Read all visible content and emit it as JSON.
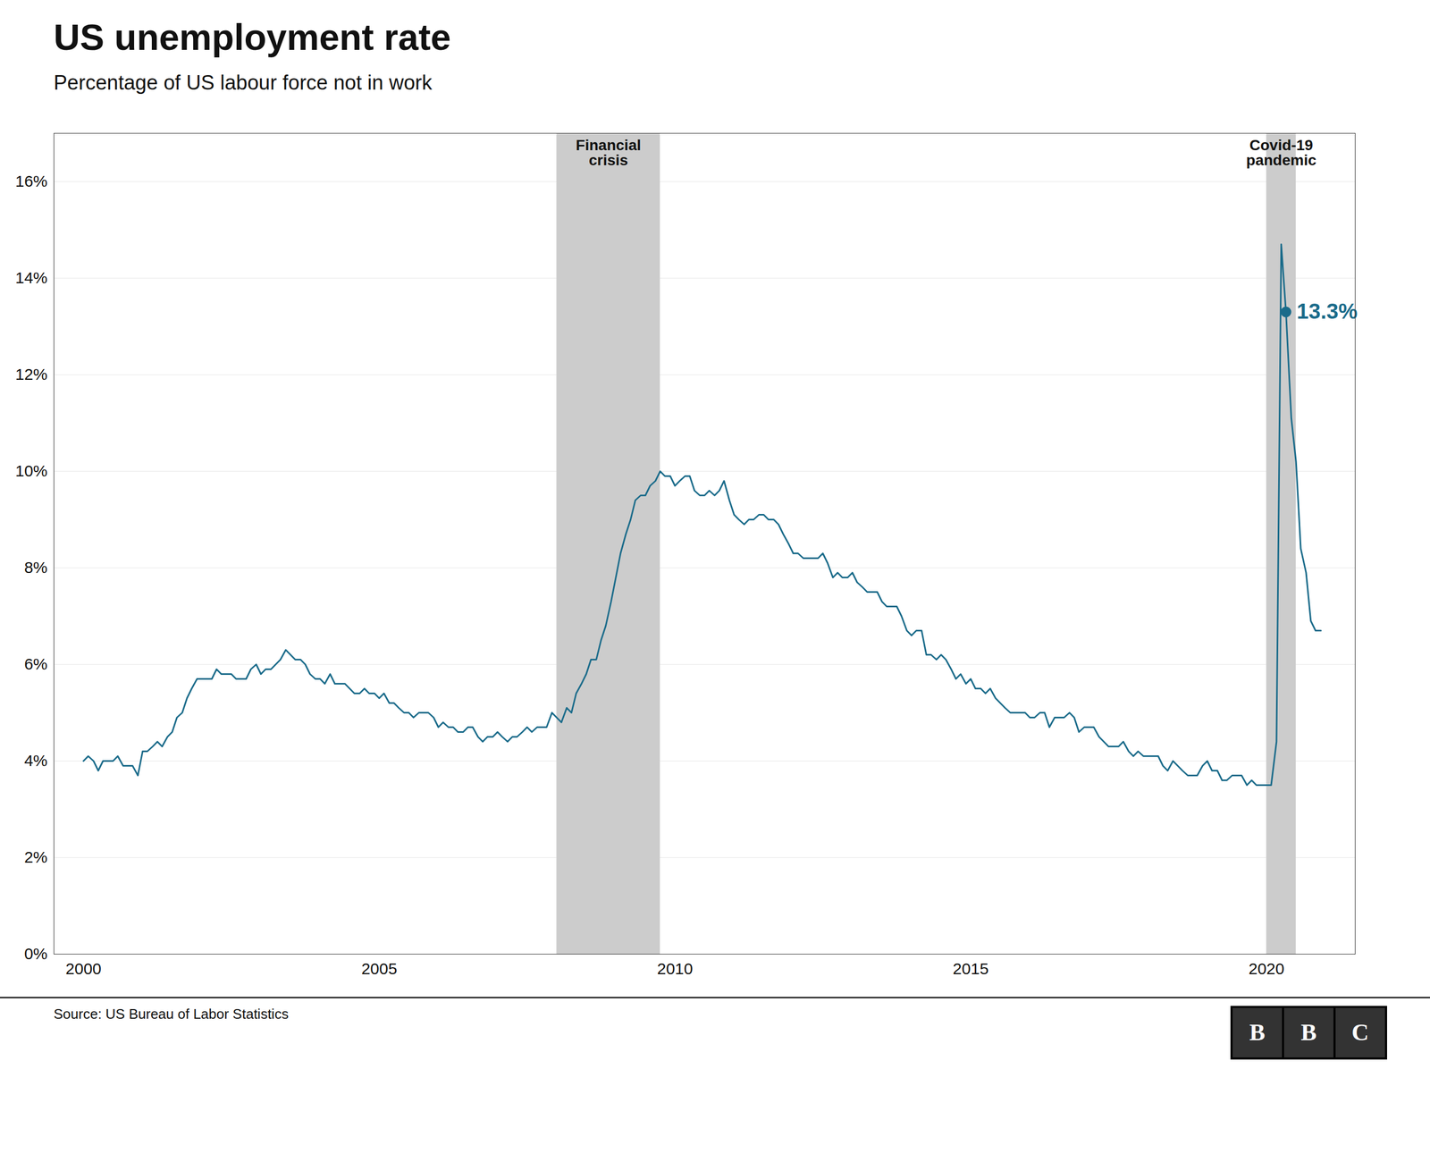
{
  "chart_data": {
    "type": "line",
    "title": "US unemployment rate",
    "subtitle": "Percentage of US labour force not in work",
    "source": "Source: US Bureau of Labor Statistics",
    "logo": "BBC",
    "color": "#1a6b8a",
    "x": [
      2000.0,
      2000.08,
      2000.17,
      2000.25,
      2000.33,
      2000.42,
      2000.5,
      2000.58,
      2000.67,
      2000.75,
      2000.83,
      2000.92,
      2001.0,
      2001.08,
      2001.17,
      2001.25,
      2001.33,
      2001.42,
      2001.5,
      2001.58,
      2001.67,
      2001.75,
      2001.83,
      2001.92,
      2002.0,
      2002.08,
      2002.17,
      2002.25,
      2002.33,
      2002.42,
      2002.5,
      2002.58,
      2002.67,
      2002.75,
      2002.83,
      2002.92,
      2003.0,
      2003.08,
      2003.17,
      2003.25,
      2003.33,
      2003.42,
      2003.5,
      2003.58,
      2003.67,
      2003.75,
      2003.83,
      2003.92,
      2004.0,
      2004.08,
      2004.17,
      2004.25,
      2004.33,
      2004.42,
      2004.5,
      2004.58,
      2004.67,
      2004.75,
      2004.83,
      2004.92,
      2005.0,
      2005.08,
      2005.17,
      2005.25,
      2005.33,
      2005.42,
      2005.5,
      2005.58,
      2005.67,
      2005.75,
      2005.83,
      2005.92,
      2006.0,
      2006.08,
      2006.17,
      2006.25,
      2006.33,
      2006.42,
      2006.5,
      2006.58,
      2006.67,
      2006.75,
      2006.83,
      2006.92,
      2007.0,
      2007.08,
      2007.17,
      2007.25,
      2007.33,
      2007.42,
      2007.5,
      2007.58,
      2007.67,
      2007.75,
      2007.83,
      2007.92,
      2008.0,
      2008.08,
      2008.17,
      2008.25,
      2008.33,
      2008.42,
      2008.5,
      2008.58,
      2008.67,
      2008.75,
      2008.83,
      2008.92,
      2009.0,
      2009.08,
      2009.17,
      2009.25,
      2009.33,
      2009.42,
      2009.5,
      2009.58,
      2009.67,
      2009.75,
      2009.83,
      2009.92,
      2010.0,
      2010.08,
      2010.17,
      2010.25,
      2010.33,
      2010.42,
      2010.5,
      2010.58,
      2010.67,
      2010.75,
      2010.83,
      2010.92,
      2011.0,
      2011.08,
      2011.17,
      2011.25,
      2011.33,
      2011.42,
      2011.5,
      2011.58,
      2011.67,
      2011.75,
      2011.83,
      2011.92,
      2012.0,
      2012.08,
      2012.17,
      2012.25,
      2012.33,
      2012.42,
      2012.5,
      2012.58,
      2012.67,
      2012.75,
      2012.83,
      2012.92,
      2013.0,
      2013.08,
      2013.17,
      2013.25,
      2013.33,
      2013.42,
      2013.5,
      2013.58,
      2013.67,
      2013.75,
      2013.83,
      2013.92,
      2014.0,
      2014.08,
      2014.17,
      2014.25,
      2014.33,
      2014.42,
      2014.5,
      2014.58,
      2014.67,
      2014.75,
      2014.83,
      2014.92,
      2015.0,
      2015.08,
      2015.17,
      2015.25,
      2015.33,
      2015.42,
      2015.5,
      2015.58,
      2015.67,
      2015.75,
      2015.83,
      2015.92,
      2016.0,
      2016.08,
      2016.17,
      2016.25,
      2016.33,
      2016.42,
      2016.5,
      2016.58,
      2016.67,
      2016.75,
      2016.83,
      2016.92,
      2017.0,
      2017.08,
      2017.17,
      2017.25,
      2017.33,
      2017.42,
      2017.5,
      2017.58,
      2017.67,
      2017.75,
      2017.83,
      2017.92,
      2018.0,
      2018.08,
      2018.17,
      2018.25,
      2018.33,
      2018.42,
      2018.5,
      2018.58,
      2018.67,
      2018.75,
      2018.83,
      2018.92,
      2019.0,
      2019.08,
      2019.17,
      2019.25,
      2019.33,
      2019.42,
      2019.5,
      2019.58,
      2019.67,
      2019.75,
      2019.83,
      2019.92,
      2020.0,
      2020.08,
      2020.17,
      2020.25,
      2020.33,
      2020.42,
      2020.5,
      2020.58,
      2020.67,
      2020.75,
      2020.83,
      2020.92
    ],
    "values": [
      4.0,
      4.1,
      4.0,
      3.8,
      4.0,
      4.0,
      4.0,
      4.1,
      3.9,
      3.9,
      3.9,
      3.7,
      4.2,
      4.2,
      4.3,
      4.4,
      4.3,
      4.5,
      4.6,
      4.9,
      5.0,
      5.3,
      5.5,
      5.7,
      5.7,
      5.7,
      5.7,
      5.9,
      5.8,
      5.8,
      5.8,
      5.7,
      5.7,
      5.7,
      5.9,
      6.0,
      5.8,
      5.9,
      5.9,
      6.0,
      6.1,
      6.3,
      6.2,
      6.1,
      6.1,
      6.0,
      5.8,
      5.7,
      5.7,
      5.6,
      5.8,
      5.6,
      5.6,
      5.6,
      5.5,
      5.4,
      5.4,
      5.5,
      5.4,
      5.4,
      5.3,
      5.4,
      5.2,
      5.2,
      5.1,
      5.0,
      5.0,
      4.9,
      5.0,
      5.0,
      5.0,
      4.9,
      4.7,
      4.8,
      4.7,
      4.7,
      4.6,
      4.6,
      4.7,
      4.7,
      4.5,
      4.4,
      4.5,
      4.5,
      4.6,
      4.5,
      4.4,
      4.5,
      4.5,
      4.6,
      4.7,
      4.6,
      4.7,
      4.7,
      4.7,
      5.0,
      4.9,
      4.8,
      5.1,
      5.0,
      5.4,
      5.6,
      5.8,
      6.1,
      6.1,
      6.5,
      6.8,
      7.3,
      7.8,
      8.3,
      8.7,
      9.0,
      9.4,
      9.5,
      9.5,
      9.7,
      9.8,
      10.0,
      9.9,
      9.9,
      9.7,
      9.8,
      9.9,
      9.9,
      9.6,
      9.5,
      9.5,
      9.6,
      9.5,
      9.6,
      9.8,
      9.4,
      9.1,
      9.0,
      8.9,
      9.0,
      9.0,
      9.1,
      9.1,
      9.0,
      9.0,
      8.9,
      8.7,
      8.5,
      8.3,
      8.3,
      8.2,
      8.2,
      8.2,
      8.2,
      8.3,
      8.1,
      7.8,
      7.9,
      7.8,
      7.8,
      7.9,
      7.7,
      7.6,
      7.5,
      7.5,
      7.5,
      7.3,
      7.2,
      7.2,
      7.2,
      7.0,
      6.7,
      6.6,
      6.7,
      6.7,
      6.2,
      6.2,
      6.1,
      6.2,
      6.1,
      5.9,
      5.7,
      5.8,
      5.6,
      5.7,
      5.5,
      5.5,
      5.4,
      5.5,
      5.3,
      5.2,
      5.1,
      5.0,
      5.0,
      5.0,
      5.0,
      4.9,
      4.9,
      5.0,
      5.0,
      4.7,
      4.9,
      4.9,
      4.9,
      5.0,
      4.9,
      4.6,
      4.7,
      4.7,
      4.7,
      4.5,
      4.4,
      4.3,
      4.3,
      4.3,
      4.4,
      4.2,
      4.1,
      4.2,
      4.1,
      4.1,
      4.1,
      4.1,
      3.9,
      3.8,
      4.0,
      3.9,
      3.8,
      3.7,
      3.7,
      3.7,
      3.9,
      4.0,
      3.8,
      3.8,
      3.6,
      3.6,
      3.7,
      3.7,
      3.7,
      3.5,
      3.6,
      3.5,
      3.5,
      3.5,
      3.5,
      4.4,
      14.7,
      13.3,
      11.1,
      10.2,
      8.4,
      7.9,
      6.9,
      6.7,
      6.7
    ],
    "xlim": [
      1999.5,
      2021.5
    ],
    "xticks": [
      2000,
      2005,
      2010,
      2015,
      2020
    ],
    "ylim": [
      0,
      17
    ],
    "yticks": [
      {
        "value": 0,
        "label": "0%"
      },
      {
        "value": 2,
        "label": "2%"
      },
      {
        "value": 4,
        "label": "4%"
      },
      {
        "value": 6,
        "label": "6%"
      },
      {
        "value": 8,
        "label": "8%"
      },
      {
        "value": 10,
        "label": "10%"
      },
      {
        "value": 12,
        "label": "12%"
      },
      {
        "value": 14,
        "label": "14%"
      },
      {
        "value": 16,
        "label": "16%"
      }
    ],
    "grid": true,
    "annotations": [
      {
        "text": "13.3%",
        "x": 2020.33,
        "y": 13.3
      }
    ],
    "shaded_regions": [
      {
        "label": "Financial\ncrisis",
        "start": 2008.0,
        "end": 2009.75,
        "color": "#cccccc"
      },
      {
        "label": "Covid-19\npandemic",
        "start": 2020.0,
        "end": 2020.5,
        "color": "#cccccc"
      }
    ]
  }
}
